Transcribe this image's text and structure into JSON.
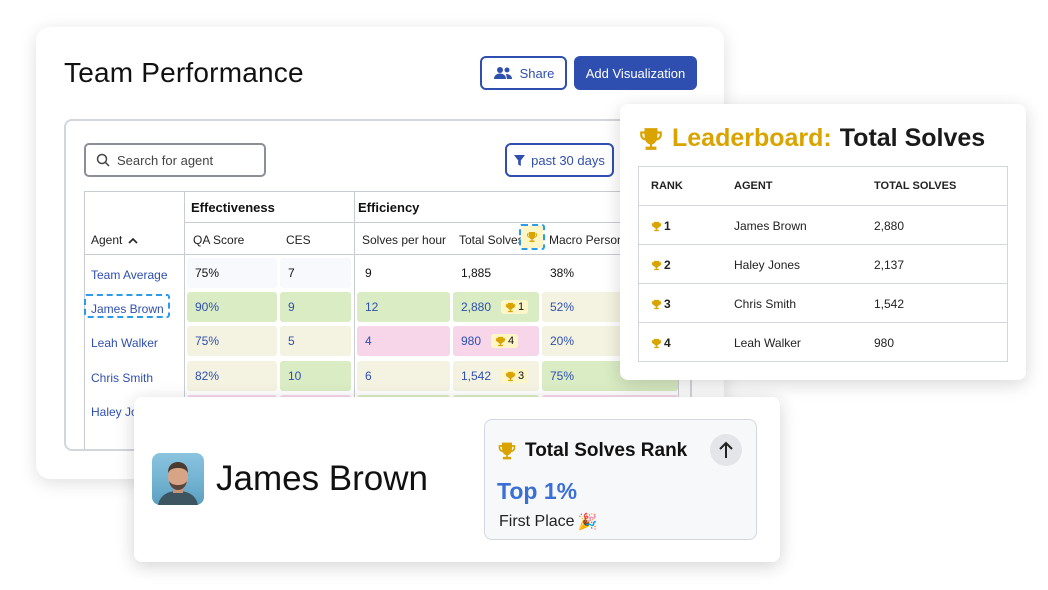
{
  "main": {
    "title": "Team Performance",
    "share_label": "Share",
    "add_label": "Add Visualization",
    "search_placeholder": "Search for agent",
    "filter_label": "past 30 days",
    "groups": {
      "effectiveness": "Effectiveness",
      "efficiency": "Efficiency"
    },
    "columns": {
      "agent": "Agent",
      "qa": "QA Score",
      "ces": "CES",
      "sph": "Solves per hour",
      "total": "Total Solves",
      "macro": "Macro Persona"
    },
    "rows": [
      {
        "agent": "Team Average",
        "qa": "75%",
        "ces": "7",
        "sph": "9",
        "total": "1,885",
        "rank": "",
        "macro": "38%"
      },
      {
        "agent": "James Brown",
        "qa": "90%",
        "ces": "9",
        "sph": "12",
        "total": "2,880",
        "rank": "1",
        "macro": "52%"
      },
      {
        "agent": "Leah Walker",
        "qa": "75%",
        "ces": "5",
        "sph": "4",
        "total": "980",
        "rank": "4",
        "macro": "20%"
      },
      {
        "agent": "Chris Smith",
        "qa": "82%",
        "ces": "10",
        "sph": "6",
        "total": "1,542",
        "rank": "3",
        "macro": "75%"
      },
      {
        "agent": "Haley Jo",
        "qa": "",
        "ces": "",
        "sph": "",
        "total": "",
        "rank": "",
        "macro": ""
      }
    ]
  },
  "leaderboard": {
    "title_prefix": "Leaderboard:",
    "title_suffix": "Total Solves",
    "headers": {
      "rank": "RANK",
      "agent": "AGENT",
      "total": "TOTAL SOLVES"
    },
    "rows": [
      {
        "rank": "1",
        "agent": "James Brown",
        "total": "2,880"
      },
      {
        "rank": "2",
        "agent": "Haley Jones",
        "total": "2,137"
      },
      {
        "rank": "3",
        "agent": "Chris Smith",
        "total": "1,542"
      },
      {
        "rank": "4",
        "agent": "Leah Walker",
        "total": "980"
      }
    ]
  },
  "profile": {
    "name": "James Brown",
    "rank_title": "Total Solves Rank",
    "rank_value": "Top 1%",
    "rank_place": "First Place",
    "celebration_emoji": "🎉"
  },
  "colors": {
    "primary": "#2f4fb0",
    "gold": "#d9a400",
    "good": "#d9ecc4",
    "neutral": "#f4f3e1",
    "bad": "#f7d6ea",
    "link": "#3b6fd8"
  },
  "icons": [
    "users-icon",
    "search-icon",
    "filter-icon",
    "sort-up-icon",
    "trophy-icon",
    "arrow-up-icon",
    "party-popper-icon"
  ]
}
